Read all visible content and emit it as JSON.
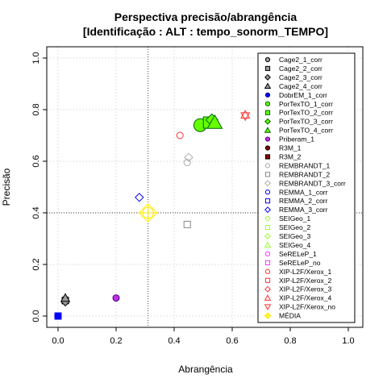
{
  "chart_data": {
    "type": "scatter",
    "title": "Perspectiva precisão/abrangência",
    "subtitle": "[Identificação : ALT : tempo_sonorm_TEMPO]",
    "xlabel": "Abrangência",
    "ylabel": "Precisão",
    "xlim": [
      0,
      1
    ],
    "ylim": [
      0,
      1
    ],
    "xticks": [
      "0.0",
      "0.2",
      "0.4",
      "0.6",
      "0.8",
      "1.0"
    ],
    "yticks": [
      "0.0",
      "0.2",
      "0.4",
      "0.6",
      "0.8",
      "1.0"
    ],
    "grid": true,
    "legend_position": "top-right",
    "reference_lines": {
      "x": 0.31,
      "y": 0.4
    },
    "series": [
      {
        "name": "Cage2_1_corr",
        "shape": "circle",
        "stroke": "#000000",
        "fill": "#999999",
        "points": [
          [
            0.025,
            0.065
          ]
        ]
      },
      {
        "name": "Cage2_2_corr",
        "shape": "square",
        "stroke": "#000000",
        "fill": "#999999",
        "points": [
          [
            0.025,
            0.06
          ]
        ]
      },
      {
        "name": "Cage2_3_corr",
        "shape": "diamond",
        "stroke": "#000000",
        "fill": "#999999",
        "points": [
          [
            0.025,
            0.055
          ]
        ]
      },
      {
        "name": "Cage2_4_corr",
        "shape": "triangle-up",
        "stroke": "#000000",
        "fill": "#999999",
        "points": [
          [
            0.025,
            0.07
          ]
        ]
      },
      {
        "name": "DobrEM_1_corr",
        "shape": "circle",
        "stroke": "#000080",
        "fill": "#0000ff",
        "points": [
          [
            0.0,
            0.0
          ]
        ]
      },
      {
        "name": "PorTexTO_1_corr",
        "shape": "circle",
        "stroke": "#006400",
        "fill": "#66ff00",
        "points": [
          [
            0.49,
            0.74
          ]
        ]
      },
      {
        "name": "PorTexTO_2_corr",
        "shape": "square",
        "stroke": "#006400",
        "fill": "#66ff00",
        "points": [
          [
            0.52,
            0.75
          ]
        ]
      },
      {
        "name": "PorTexTO_3_corr",
        "shape": "diamond",
        "stroke": "#006400",
        "fill": "#66ff00",
        "points": [
          [
            0.53,
            0.76
          ]
        ]
      },
      {
        "name": "PorTexTO_4_corr",
        "shape": "triangle-up",
        "stroke": "#006400",
        "fill": "#66ff00",
        "points": [
          [
            0.54,
            0.75
          ]
        ]
      },
      {
        "name": "Priberam_1",
        "shape": "circle",
        "stroke": "#4b0082",
        "fill": "#bb33dd",
        "points": [
          [
            0.2,
            0.07
          ]
        ]
      },
      {
        "name": "R3M_1",
        "shape": "circle",
        "stroke": "#000000",
        "fill": "#8b0000",
        "points": []
      },
      {
        "name": "R3M_2",
        "shape": "square",
        "stroke": "#000000",
        "fill": "#8b0000",
        "points": []
      },
      {
        "name": "REMBRANDT_1",
        "shape": "circle",
        "stroke": "#aaaaaa",
        "fill": "none",
        "points": [
          [
            0.445,
            0.595
          ]
        ]
      },
      {
        "name": "REMBRANDT_2",
        "shape": "square",
        "stroke": "#888888",
        "fill": "none",
        "points": [
          [
            0.445,
            0.355
          ]
        ]
      },
      {
        "name": "REMBRANDT_3_corr",
        "shape": "diamond",
        "stroke": "#aaaaaa",
        "fill": "none",
        "points": [
          [
            0.45,
            0.615
          ]
        ]
      },
      {
        "name": "REMMA_1_corr",
        "shape": "circle",
        "stroke": "#0000ff",
        "fill": "none",
        "points": [
          [
            0.0,
            0.0
          ]
        ]
      },
      {
        "name": "REMMA_2_corr",
        "shape": "square",
        "stroke": "#0000ff",
        "fill": "none",
        "points": [
          [
            0.0,
            0.0
          ]
        ]
      },
      {
        "name": "REMMA_3_corr",
        "shape": "diamond",
        "stroke": "#0000ff",
        "fill": "none",
        "points": [
          [
            0.28,
            0.46
          ]
        ]
      },
      {
        "name": "SEIGeo_1",
        "shape": "circle",
        "stroke": "#99ff33",
        "fill": "none",
        "points": []
      },
      {
        "name": "SEIGeo_2",
        "shape": "square",
        "stroke": "#99ff33",
        "fill": "none",
        "points": []
      },
      {
        "name": "SEIGeo_3",
        "shape": "diamond",
        "stroke": "#99ff33",
        "fill": "none",
        "points": []
      },
      {
        "name": "SEIGeo_4",
        "shape": "triangle-up",
        "stroke": "#99ff33",
        "fill": "none",
        "points": []
      },
      {
        "name": "SeRELeP_1",
        "shape": "circle",
        "stroke": "#ff33ff",
        "fill": "none",
        "points": []
      },
      {
        "name": "SeRELeP_no",
        "shape": "square",
        "stroke": "#ff33ff",
        "fill": "none",
        "points": []
      },
      {
        "name": "XIP-L2F/Xerox_1",
        "shape": "circle",
        "stroke": "#ff3333",
        "fill": "none",
        "points": [
          [
            0.42,
            0.7
          ]
        ]
      },
      {
        "name": "XIP-L2F/Xerox_2",
        "shape": "square",
        "stroke": "#ff3333",
        "fill": "none",
        "points": []
      },
      {
        "name": "XIP-L2F/Xerox_3",
        "shape": "diamond",
        "stroke": "#ff3333",
        "fill": "none",
        "points": []
      },
      {
        "name": "XIP-L2F/Xerox_4",
        "shape": "triangle-up",
        "stroke": "#ff3333",
        "fill": "none",
        "points": [
          [
            0.645,
            0.78
          ]
        ]
      },
      {
        "name": "XIP-L2F/Xerox_no",
        "shape": "triangle-down",
        "stroke": "#ff3333",
        "fill": "none",
        "points": [
          [
            0.645,
            0.775
          ]
        ]
      },
      {
        "name": "MÉDIA",
        "shape": "crosshair",
        "stroke": "#ffee00",
        "fill": "none",
        "points": [
          [
            0.31,
            0.4
          ]
        ]
      }
    ]
  }
}
